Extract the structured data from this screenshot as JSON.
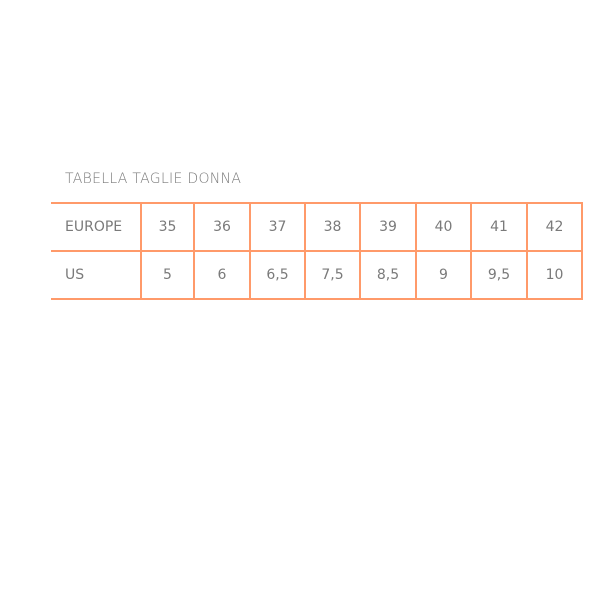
{
  "title": "TABELLA TAGLIE DONNA",
  "border_color": "#ff9a6a",
  "rows": [
    {
      "label": "EUROPE",
      "values": [
        "35",
        "36",
        "37",
        "38",
        "39",
        "40",
        "41",
        "42"
      ]
    },
    {
      "label": "US",
      "values": [
        "5",
        "6",
        "6,5",
        "7,5",
        "8,5",
        "9",
        "9,5",
        "10"
      ]
    }
  ]
}
